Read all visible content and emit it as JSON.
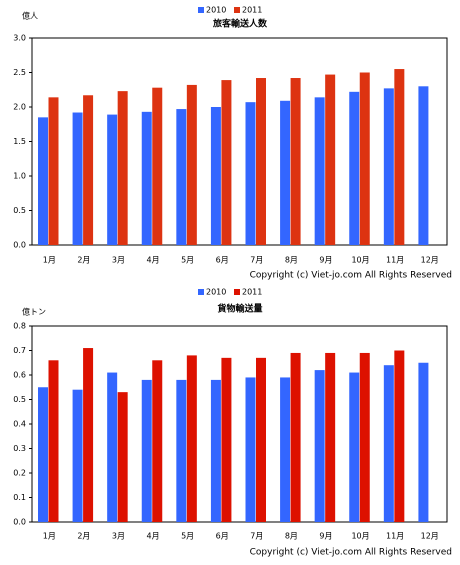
{
  "chart_data": [
    {
      "type": "bar",
      "title": "旅客輸送人数",
      "unit": "億人",
      "categories": [
        "1月",
        "2月",
        "3月",
        "4月",
        "5月",
        "6月",
        "7月",
        "8月",
        "9月",
        "10月",
        "11月",
        "12月"
      ],
      "series": [
        {
          "name": "2010",
          "color": "#3366ff",
          "values": [
            1.85,
            1.92,
            1.89,
            1.93,
            1.97,
            2.0,
            2.07,
            2.09,
            2.14,
            2.22,
            2.27,
            2.3
          ]
        },
        {
          "name": "2011",
          "color": "#dd3311",
          "values": [
            2.14,
            2.17,
            2.23,
            2.28,
            2.32,
            2.39,
            2.42,
            2.42,
            2.47,
            2.5,
            2.55,
            null
          ]
        }
      ],
      "ylim": [
        0,
        3
      ],
      "yticks": [
        {
          "value": 0,
          "label": "0.0"
        },
        {
          "value": 0.5,
          "label": "0.5"
        },
        {
          "value": 1,
          "label": "1.0"
        },
        {
          "value": 1.5,
          "label": "1.5"
        },
        {
          "value": 2,
          "label": "2.0"
        },
        {
          "value": 2.5,
          "label": "2.5"
        },
        {
          "value": 3,
          "label": "3.0"
        }
      ],
      "grid": false,
      "copyright": "Copyright (c) Viet-jo.com All Rights Reserved"
    },
    {
      "type": "bar",
      "title": "貨物輸送量",
      "unit": "億トン",
      "categories": [
        "1月",
        "2月",
        "3月",
        "4月",
        "5月",
        "6月",
        "7月",
        "8月",
        "9月",
        "10月",
        "11月",
        "12月"
      ],
      "series": [
        {
          "name": "2010",
          "color": "#3366ff",
          "values": [
            0.55,
            0.54,
            0.61,
            0.58,
            0.58,
            0.58,
            0.59,
            0.59,
            0.62,
            0.61,
            0.64,
            0.65
          ]
        },
        {
          "name": "2011",
          "color": "#dd1100",
          "values": [
            0.66,
            0.71,
            0.53,
            0.66,
            0.68,
            0.67,
            0.67,
            0.69,
            0.69,
            0.69,
            0.7,
            null
          ]
        }
      ],
      "ylim": [
        0,
        0.8
      ],
      "yticks": [
        {
          "value": 0,
          "label": "0.0"
        },
        0.1,
        0.2,
        0.3,
        0.4,
        0.5,
        0.6,
        0.7,
        0.8
      ],
      "grid": false,
      "copyright": "Copyright (c) Viet-jo.com All Rights Reserved"
    }
  ]
}
